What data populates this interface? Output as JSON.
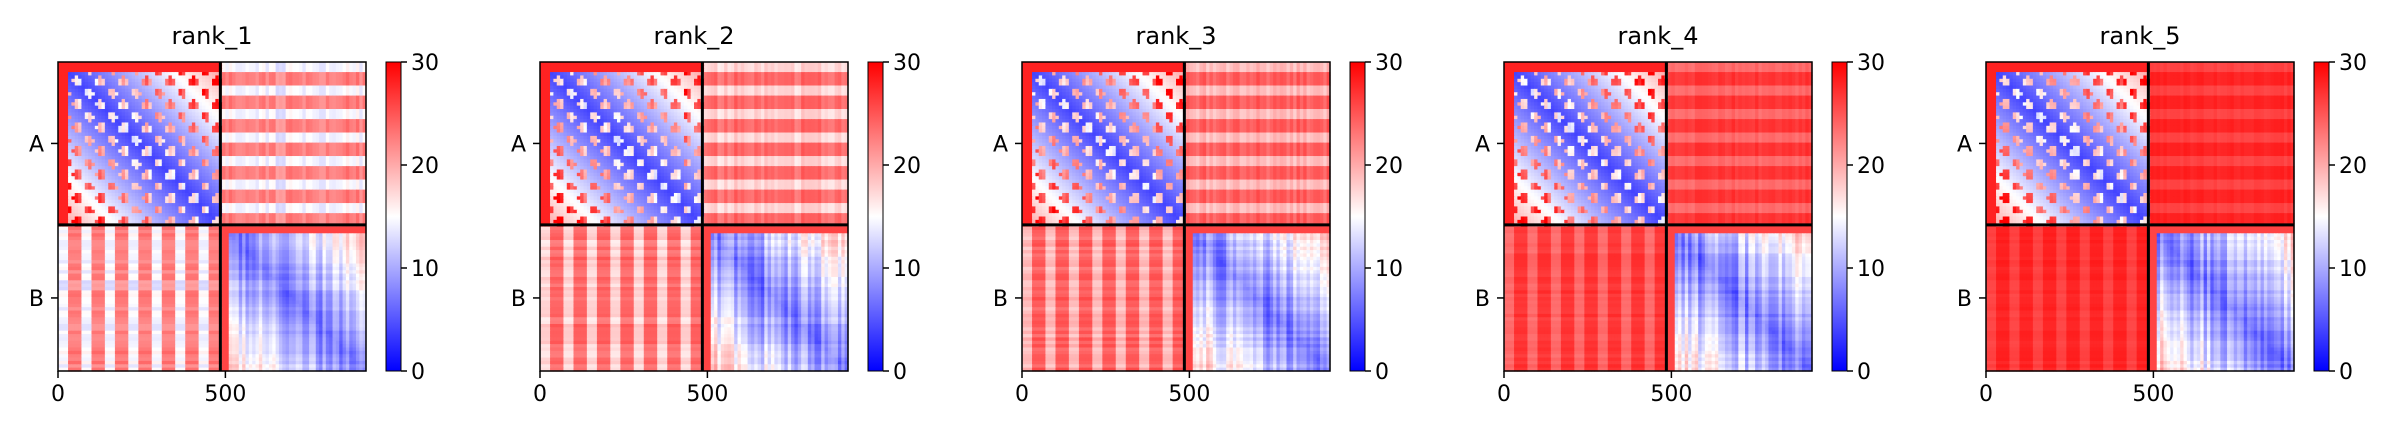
{
  "chart_data": {
    "type": "heatmap",
    "colormap": {
      "name": "bwr",
      "low": "#0000ff",
      "mid": "#ffffff",
      "high": "#ff0000"
    },
    "color_range": [
      0,
      30
    ],
    "colorbar_ticks": [
      "0",
      "10",
      "20",
      "30"
    ],
    "x_ticks": [
      {
        "value": 0,
        "label": "0"
      },
      {
        "value": 500,
        "label": "500"
      }
    ],
    "x_range": [
      0,
      920
    ],
    "chain_boundary": 485,
    "chain_labels": [
      "A",
      "B"
    ],
    "panels": [
      {
        "title": "rank_1",
        "inter_chain_level": 0.8
      },
      {
        "title": "rank_2",
        "inter_chain_level": 0.84
      },
      {
        "title": "rank_3",
        "inter_chain_level": 0.86
      },
      {
        "title": "rank_4",
        "inter_chain_level": 0.92
      },
      {
        "title": "rank_5",
        "inter_chain_level": 0.95
      }
    ]
  }
}
